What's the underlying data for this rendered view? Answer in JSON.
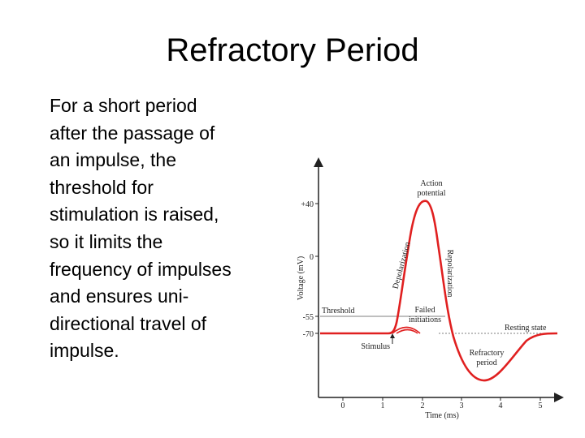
{
  "slide": {
    "title": "Refractory Period",
    "body_lines": [
      "For a short period",
      "after the passage of",
      "an impulse, the",
      "threshold for",
      "stimulation is raised,",
      "so it limits the",
      "frequency of impulses",
      "and ensures uni-",
      "directional travel of",
      "impulse."
    ]
  },
  "diagram": {
    "y_axis_label": "Voltage (mV)",
    "x_axis_label": "Time (ms)",
    "y_ticks": [
      "+40",
      "0",
      "-55",
      "-70"
    ],
    "x_ticks": [
      "0",
      "1",
      "2",
      "3",
      "4",
      "5"
    ],
    "labels": {
      "action_potential_1": "Action",
      "action_potential_2": "potential",
      "depolarization": "Depolarization",
      "repolarization": "Repolarization",
      "threshold": "Threshold",
      "failed_1": "Failed",
      "failed_2": "initiations",
      "stimulus": "Stimulus",
      "refractory_1": "Refractory",
      "refractory_2": "period",
      "resting_state": "Resting state"
    },
    "curve_color": "#e02020"
  }
}
